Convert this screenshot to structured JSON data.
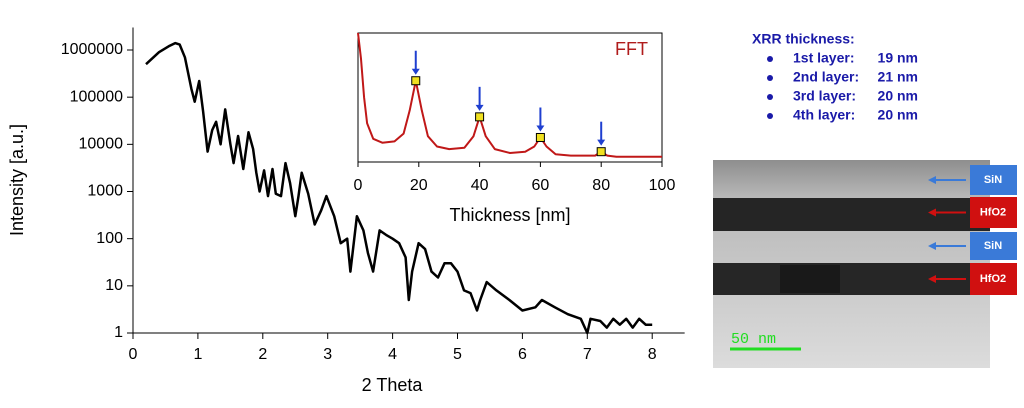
{
  "chart_data": [
    {
      "type": "line",
      "xlabel": "2 Theta",
      "ylabel": "Intensity [a.u.]",
      "log_y": true,
      "xlim": [
        0,
        8.5
      ],
      "ylim": [
        1,
        3000000
      ],
      "xticks": [
        0,
        1,
        2,
        3,
        4,
        5,
        6,
        7,
        8
      ],
      "yticks": [
        1,
        10,
        100,
        1000,
        10000,
        100000,
        1000000
      ],
      "series": [
        {
          "color": "#000000",
          "x": [
            0.2,
            0.4,
            0.55,
            0.65,
            0.72,
            0.8,
            0.9,
            0.95,
            1.02,
            1.08,
            1.15,
            1.22,
            1.28,
            1.35,
            1.42,
            1.5,
            1.55,
            1.62,
            1.7,
            1.78,
            1.85,
            1.9,
            1.95,
            2.02,
            2.08,
            2.15,
            2.2,
            2.28,
            2.35,
            2.42,
            2.5,
            2.55,
            2.6,
            2.7,
            2.8,
            2.9,
            2.98,
            3.1,
            3.2,
            3.3,
            3.35,
            3.45,
            3.55,
            3.62,
            3.7,
            3.8,
            3.9,
            4.0,
            4.1,
            4.2,
            4.25,
            4.3,
            4.4,
            4.5,
            4.6,
            4.7,
            4.8,
            4.9,
            5.0,
            5.1,
            5.2,
            5.3,
            5.35,
            5.45,
            5.6,
            5.8,
            6.0,
            6.2,
            6.3,
            6.5,
            6.7,
            6.9,
            7.0,
            7.05,
            7.2,
            7.3,
            7.4,
            7.5,
            7.6,
            7.7,
            7.8,
            7.9,
            8.0
          ],
          "values": [
            500000,
            900000,
            1200000,
            1400000,
            1300000,
            700000,
            150000,
            80000,
            220000,
            50000,
            7000,
            20000,
            30000,
            10000,
            55000,
            10000,
            4000,
            15000,
            3000,
            18000,
            8000,
            2500,
            1000,
            2800,
            800,
            3000,
            900,
            800,
            4000,
            1500,
            300,
            800,
            2500,
            900,
            200,
            400,
            800,
            300,
            80,
            100,
            20,
            300,
            150,
            50,
            20,
            150,
            120,
            100,
            80,
            40,
            5,
            20,
            80,
            60,
            20,
            15,
            30,
            30,
            20,
            8,
            7,
            3,
            5,
            12,
            8,
            5,
            3,
            3.5,
            5,
            3.5,
            2.5,
            2,
            1,
            2,
            1.8,
            1.3,
            2,
            1.5,
            2,
            1.3,
            2,
            1.5,
            1.5
          ]
        }
      ]
    },
    {
      "type": "line",
      "xlabel": "Thickness [nm]",
      "annotation": "FFT",
      "xlim": [
        0,
        100
      ],
      "ylim": [
        0,
        100
      ],
      "xticks": [
        0,
        20,
        40,
        60,
        80,
        100
      ],
      "series": [
        {
          "color": "#c01818",
          "x": [
            0,
            1,
            2,
            3,
            5,
            8,
            12,
            15,
            17,
            19,
            21,
            23,
            26,
            30,
            35,
            38,
            40,
            42,
            45,
            50,
            55,
            58,
            60,
            62,
            65,
            70,
            75,
            78,
            80,
            82,
            85,
            90,
            95,
            100
          ],
          "values": [
            100,
            80,
            50,
            30,
            18,
            15,
            16,
            22,
            40,
            63,
            40,
            20,
            12,
            10,
            11,
            20,
            35,
            20,
            10,
            7,
            8,
            12,
            19,
            12,
            6,
            5,
            5,
            5,
            8,
            5,
            4,
            4,
            4,
            4
          ]
        },
        {
          "color": "#f0e020",
          "x": [
            19,
            40,
            60,
            80
          ],
          "values": [
            63,
            35,
            19,
            8
          ]
        }
      ]
    }
  ],
  "xrr_thickness": {
    "title": "XRR thickness:",
    "items": [
      {
        "label": "1st layer:",
        "value": "19 nm"
      },
      {
        "label": "2nd layer:",
        "value": "21 nm"
      },
      {
        "label": "3rd layer:",
        "value": "20 nm"
      },
      {
        "label": "4th layer:",
        "value": "20 nm"
      }
    ]
  },
  "tem": {
    "layers": [
      "SiN",
      "HfO2",
      "SiN",
      "HfO2"
    ],
    "scale_bar": "50 nm"
  }
}
